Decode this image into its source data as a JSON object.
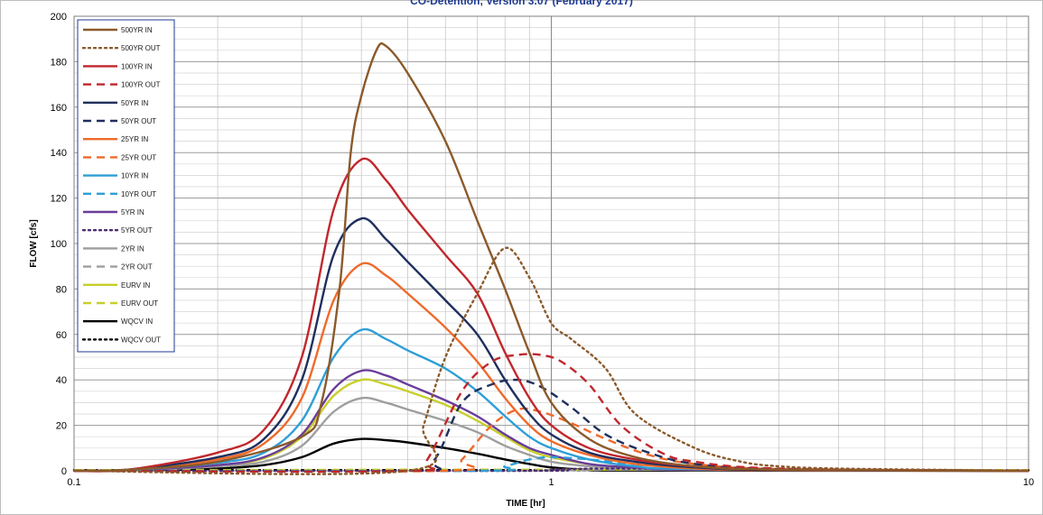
{
  "chart_data": {
    "type": "line",
    "title": "CO-Detention, Version 3.07 (February 2017)",
    "xlabel": "TIME [hr]",
    "ylabel": "FLOW [cfs]",
    "xscale": "log",
    "xlim": [
      0.1,
      10
    ],
    "ylim": [
      0,
      200
    ],
    "x_ticks": [
      0.1,
      1,
      10
    ],
    "x_tick_labels": [
      "0.1",
      "1",
      "10"
    ],
    "y_ticks": [
      0,
      20,
      40,
      60,
      80,
      100,
      120,
      140,
      160,
      180,
      200
    ],
    "y_tick_labels": [
      "0",
      "20",
      "40",
      "60",
      "80",
      "100",
      "120",
      "140",
      "160",
      "180",
      "200"
    ],
    "grid": true,
    "legend_position": "top-left",
    "series": [
      {
        "name": "500YR IN",
        "color": "#8B5A2B",
        "dash": "solid",
        "points": [
          [
            0.1,
            0
          ],
          [
            0.13,
            0.5
          ],
          [
            0.2,
            4
          ],
          [
            0.3,
            15
          ],
          [
            0.33,
            30
          ],
          [
            0.36,
            80
          ],
          [
            0.38,
            140
          ],
          [
            0.4,
            165
          ],
          [
            0.43,
            185
          ],
          [
            0.45,
            187
          ],
          [
            0.5,
            175
          ],
          [
            0.6,
            145
          ],
          [
            0.7,
            110
          ],
          [
            0.8,
            80
          ],
          [
            0.9,
            52
          ],
          [
            1.0,
            30
          ],
          [
            1.2,
            14
          ],
          [
            1.5,
            6
          ],
          [
            2.0,
            2
          ],
          [
            3.0,
            0.5
          ],
          [
            10,
            0
          ]
        ]
      },
      {
        "name": "500YR OUT",
        "color": "#8B5A2B",
        "dash": "dot",
        "points": [
          [
            0.1,
            0
          ],
          [
            0.5,
            0
          ],
          [
            0.54,
            20
          ],
          [
            0.6,
            50
          ],
          [
            0.7,
            78
          ],
          [
            0.8,
            98
          ],
          [
            0.9,
            85
          ],
          [
            1.0,
            65
          ],
          [
            1.1,
            58
          ],
          [
            1.3,
            45
          ],
          [
            1.5,
            25
          ],
          [
            2.0,
            10
          ],
          [
            2.5,
            4
          ],
          [
            3.0,
            2
          ],
          [
            4.0,
            1
          ],
          [
            10,
            0
          ]
        ]
      },
      {
        "name": "100YR IN",
        "color": "#C0272D",
        "dash": "solid",
        "points": [
          [
            0.1,
            0
          ],
          [
            0.13,
            0.5
          ],
          [
            0.2,
            8
          ],
          [
            0.25,
            18
          ],
          [
            0.3,
            50
          ],
          [
            0.35,
            115
          ],
          [
            0.4,
            137
          ],
          [
            0.45,
            128
          ],
          [
            0.5,
            115
          ],
          [
            0.6,
            95
          ],
          [
            0.7,
            78
          ],
          [
            0.8,
            52
          ],
          [
            0.9,
            32
          ],
          [
            1.0,
            20
          ],
          [
            1.2,
            10
          ],
          [
            1.5,
            5
          ],
          [
            2.0,
            2
          ],
          [
            3.0,
            0.5
          ],
          [
            10,
            0
          ]
        ]
      },
      {
        "name": "100YR OUT",
        "color": "#C0272D",
        "dash": "dash",
        "points": [
          [
            0.1,
            0
          ],
          [
            0.5,
            0
          ],
          [
            0.55,
            5
          ],
          [
            0.65,
            35
          ],
          [
            0.75,
            48
          ],
          [
            0.85,
            51
          ],
          [
            0.95,
            51
          ],
          [
            1.05,
            48
          ],
          [
            1.2,
            38
          ],
          [
            1.4,
            20
          ],
          [
            1.7,
            8
          ],
          [
            2.0,
            4
          ],
          [
            3.0,
            1
          ],
          [
            10,
            0
          ]
        ]
      },
      {
        "name": "50YR IN",
        "color": "#1F2F5E",
        "dash": "solid",
        "points": [
          [
            0.1,
            0
          ],
          [
            0.13,
            0.5
          ],
          [
            0.2,
            6
          ],
          [
            0.25,
            14
          ],
          [
            0.3,
            40
          ],
          [
            0.35,
            95
          ],
          [
            0.4,
            111
          ],
          [
            0.45,
            102
          ],
          [
            0.5,
            92
          ],
          [
            0.6,
            75
          ],
          [
            0.7,
            60
          ],
          [
            0.8,
            40
          ],
          [
            0.9,
            25
          ],
          [
            1.0,
            16
          ],
          [
            1.2,
            8
          ],
          [
            1.5,
            4
          ],
          [
            2.0,
            1.5
          ],
          [
            3.0,
            0.3
          ],
          [
            10,
            0
          ]
        ]
      },
      {
        "name": "50YR OUT",
        "color": "#1F2F5E",
        "dash": "dash",
        "points": [
          [
            0.1,
            0
          ],
          [
            0.5,
            0
          ],
          [
            0.57,
            5
          ],
          [
            0.65,
            30
          ],
          [
            0.75,
            38
          ],
          [
            0.85,
            40
          ],
          [
            0.95,
            37
          ],
          [
            1.1,
            28
          ],
          [
            1.3,
            16
          ],
          [
            1.6,
            8
          ],
          [
            2.0,
            3
          ],
          [
            3.0,
            0.8
          ],
          [
            10,
            0
          ]
        ]
      },
      {
        "name": "25YR IN",
        "color": "#EF6A2A",
        "dash": "solid",
        "points": [
          [
            0.1,
            0
          ],
          [
            0.13,
            0.4
          ],
          [
            0.2,
            5
          ],
          [
            0.25,
            12
          ],
          [
            0.3,
            32
          ],
          [
            0.35,
            75
          ],
          [
            0.4,
            91
          ],
          [
            0.45,
            86
          ],
          [
            0.5,
            78
          ],
          [
            0.6,
            63
          ],
          [
            0.7,
            48
          ],
          [
            0.8,
            32
          ],
          [
            0.9,
            20
          ],
          [
            1.0,
            13
          ],
          [
            1.2,
            7
          ],
          [
            1.5,
            3
          ],
          [
            2.0,
            1
          ],
          [
            3.0,
            0.2
          ],
          [
            10,
            0
          ]
        ]
      },
      {
        "name": "25YR OUT",
        "color": "#EF6A2A",
        "dash": "dash",
        "points": [
          [
            0.1,
            0
          ],
          [
            0.6,
            0
          ],
          [
            0.65,
            5
          ],
          [
            0.75,
            20
          ],
          [
            0.85,
            27
          ],
          [
            0.95,
            26
          ],
          [
            1.1,
            21
          ],
          [
            1.3,
            14
          ],
          [
            1.6,
            7
          ],
          [
            2.0,
            3
          ],
          [
            3.0,
            0.8
          ],
          [
            10,
            0
          ]
        ]
      },
      {
        "name": "10YR IN",
        "color": "#2E9FD6",
        "dash": "solid",
        "points": [
          [
            0.1,
            0
          ],
          [
            0.13,
            0.3
          ],
          [
            0.2,
            3.5
          ],
          [
            0.25,
            8
          ],
          [
            0.3,
            22
          ],
          [
            0.35,
            50
          ],
          [
            0.4,
            62
          ],
          [
            0.45,
            58
          ],
          [
            0.5,
            53
          ],
          [
            0.6,
            45
          ],
          [
            0.7,
            35
          ],
          [
            0.8,
            24
          ],
          [
            0.9,
            15
          ],
          [
            1.0,
            10
          ],
          [
            1.2,
            5
          ],
          [
            1.5,
            2
          ],
          [
            2.0,
            0.8
          ],
          [
            10,
            0
          ]
        ]
      },
      {
        "name": "10YR OUT",
        "color": "#2E9FD6",
        "dash": "dash",
        "points": [
          [
            0.1,
            0
          ],
          [
            0.7,
            0
          ],
          [
            0.8,
            2
          ],
          [
            0.9,
            5
          ],
          [
            1.0,
            6
          ],
          [
            1.2,
            5
          ],
          [
            1.5,
            3
          ],
          [
            2.0,
            1.5
          ],
          [
            3.0,
            0.5
          ],
          [
            10,
            0
          ]
        ]
      },
      {
        "name": "5YR IN",
        "color": "#6A3D9A",
        "dash": "solid",
        "points": [
          [
            0.1,
            0
          ],
          [
            0.13,
            0.3
          ],
          [
            0.2,
            2.5
          ],
          [
            0.25,
            6
          ],
          [
            0.3,
            16
          ],
          [
            0.35,
            36
          ],
          [
            0.4,
            44
          ],
          [
            0.45,
            42
          ],
          [
            0.5,
            38
          ],
          [
            0.6,
            31
          ],
          [
            0.7,
            24
          ],
          [
            0.8,
            16
          ],
          [
            0.9,
            10
          ],
          [
            1.0,
            7
          ],
          [
            1.2,
            3
          ],
          [
            1.5,
            1.5
          ],
          [
            2.0,
            0.5
          ],
          [
            10,
            0
          ]
        ]
      },
      {
        "name": "5YR OUT",
        "color": "#4B2C6F",
        "dash": "dot",
        "points": [
          [
            0.1,
            0
          ],
          [
            0.9,
            0
          ],
          [
            1.0,
            0.5
          ],
          [
            1.3,
            1
          ],
          [
            2.0,
            0.8
          ],
          [
            3.0,
            0.5
          ],
          [
            5.0,
            0.3
          ],
          [
            10,
            0.1
          ]
        ]
      },
      {
        "name": "2YR IN",
        "color": "#9E9E9E",
        "dash": "solid",
        "points": [
          [
            0.1,
            0
          ],
          [
            0.13,
            0.2
          ],
          [
            0.2,
            2
          ],
          [
            0.25,
            4
          ],
          [
            0.3,
            11
          ],
          [
            0.35,
            26
          ],
          [
            0.4,
            32
          ],
          [
            0.45,
            30
          ],
          [
            0.5,
            27
          ],
          [
            0.6,
            22
          ],
          [
            0.7,
            17
          ],
          [
            0.8,
            11
          ],
          [
            0.9,
            7
          ],
          [
            1.0,
            4
          ],
          [
            1.2,
            2
          ],
          [
            1.5,
            1
          ],
          [
            2.0,
            0.3
          ],
          [
            10,
            0
          ]
        ]
      },
      {
        "name": "2YR OUT",
        "color": "#9E9E9E",
        "dash": "dash",
        "points": [
          [
            0.1,
            0
          ],
          [
            0.8,
            0
          ],
          [
            1.0,
            0.3
          ],
          [
            1.5,
            0.5
          ],
          [
            2.0,
            0.5
          ],
          [
            3.0,
            0.3
          ],
          [
            5.0,
            0.2
          ],
          [
            10,
            0.1
          ]
        ]
      },
      {
        "name": "EURV IN",
        "color": "#C8CF2B",
        "dash": "solid",
        "points": [
          [
            0.1,
            0
          ],
          [
            0.13,
            0.3
          ],
          [
            0.2,
            2.5
          ],
          [
            0.25,
            5.5
          ],
          [
            0.3,
            15
          ],
          [
            0.35,
            33
          ],
          [
            0.4,
            40
          ],
          [
            0.45,
            38
          ],
          [
            0.5,
            35
          ],
          [
            0.6,
            29
          ],
          [
            0.7,
            22
          ],
          [
            0.8,
            15
          ],
          [
            0.9,
            9
          ],
          [
            1.0,
            6
          ],
          [
            1.2,
            3
          ],
          [
            1.5,
            1.2
          ],
          [
            2.0,
            0.4
          ],
          [
            10,
            0
          ]
        ]
      },
      {
        "name": "EURV OUT",
        "color": "#C8CF2B",
        "dash": "dash",
        "points": [
          [
            0.1,
            0.3
          ],
          [
            0.3,
            0.4
          ],
          [
            0.5,
            0.5
          ],
          [
            1.0,
            0.5
          ],
          [
            2.0,
            0.5
          ],
          [
            5.0,
            0.4
          ],
          [
            10,
            0.3
          ]
        ]
      },
      {
        "name": "WQCV IN",
        "color": "#000000",
        "dash": "solid",
        "points": [
          [
            0.1,
            0
          ],
          [
            0.15,
            0.3
          ],
          [
            0.2,
            1
          ],
          [
            0.25,
            2.5
          ],
          [
            0.3,
            6
          ],
          [
            0.35,
            12
          ],
          [
            0.4,
            14
          ],
          [
            0.45,
            13.5
          ],
          [
            0.5,
            12.5
          ],
          [
            0.6,
            10
          ],
          [
            0.7,
            7.5
          ],
          [
            0.8,
            5
          ],
          [
            0.9,
            3
          ],
          [
            1.0,
            1.5
          ],
          [
            1.2,
            0.5
          ],
          [
            1.5,
            0.1
          ],
          [
            10,
            0
          ]
        ]
      },
      {
        "name": "WQCV OUT",
        "color": "#000000",
        "dash": "dot",
        "points": [
          [
            0.1,
            0.3
          ],
          [
            0.5,
            0.3
          ],
          [
            1.0,
            0.3
          ],
          [
            2.0,
            0.3
          ],
          [
            5.0,
            0.2
          ],
          [
            10,
            0.2
          ]
        ]
      }
    ]
  }
}
